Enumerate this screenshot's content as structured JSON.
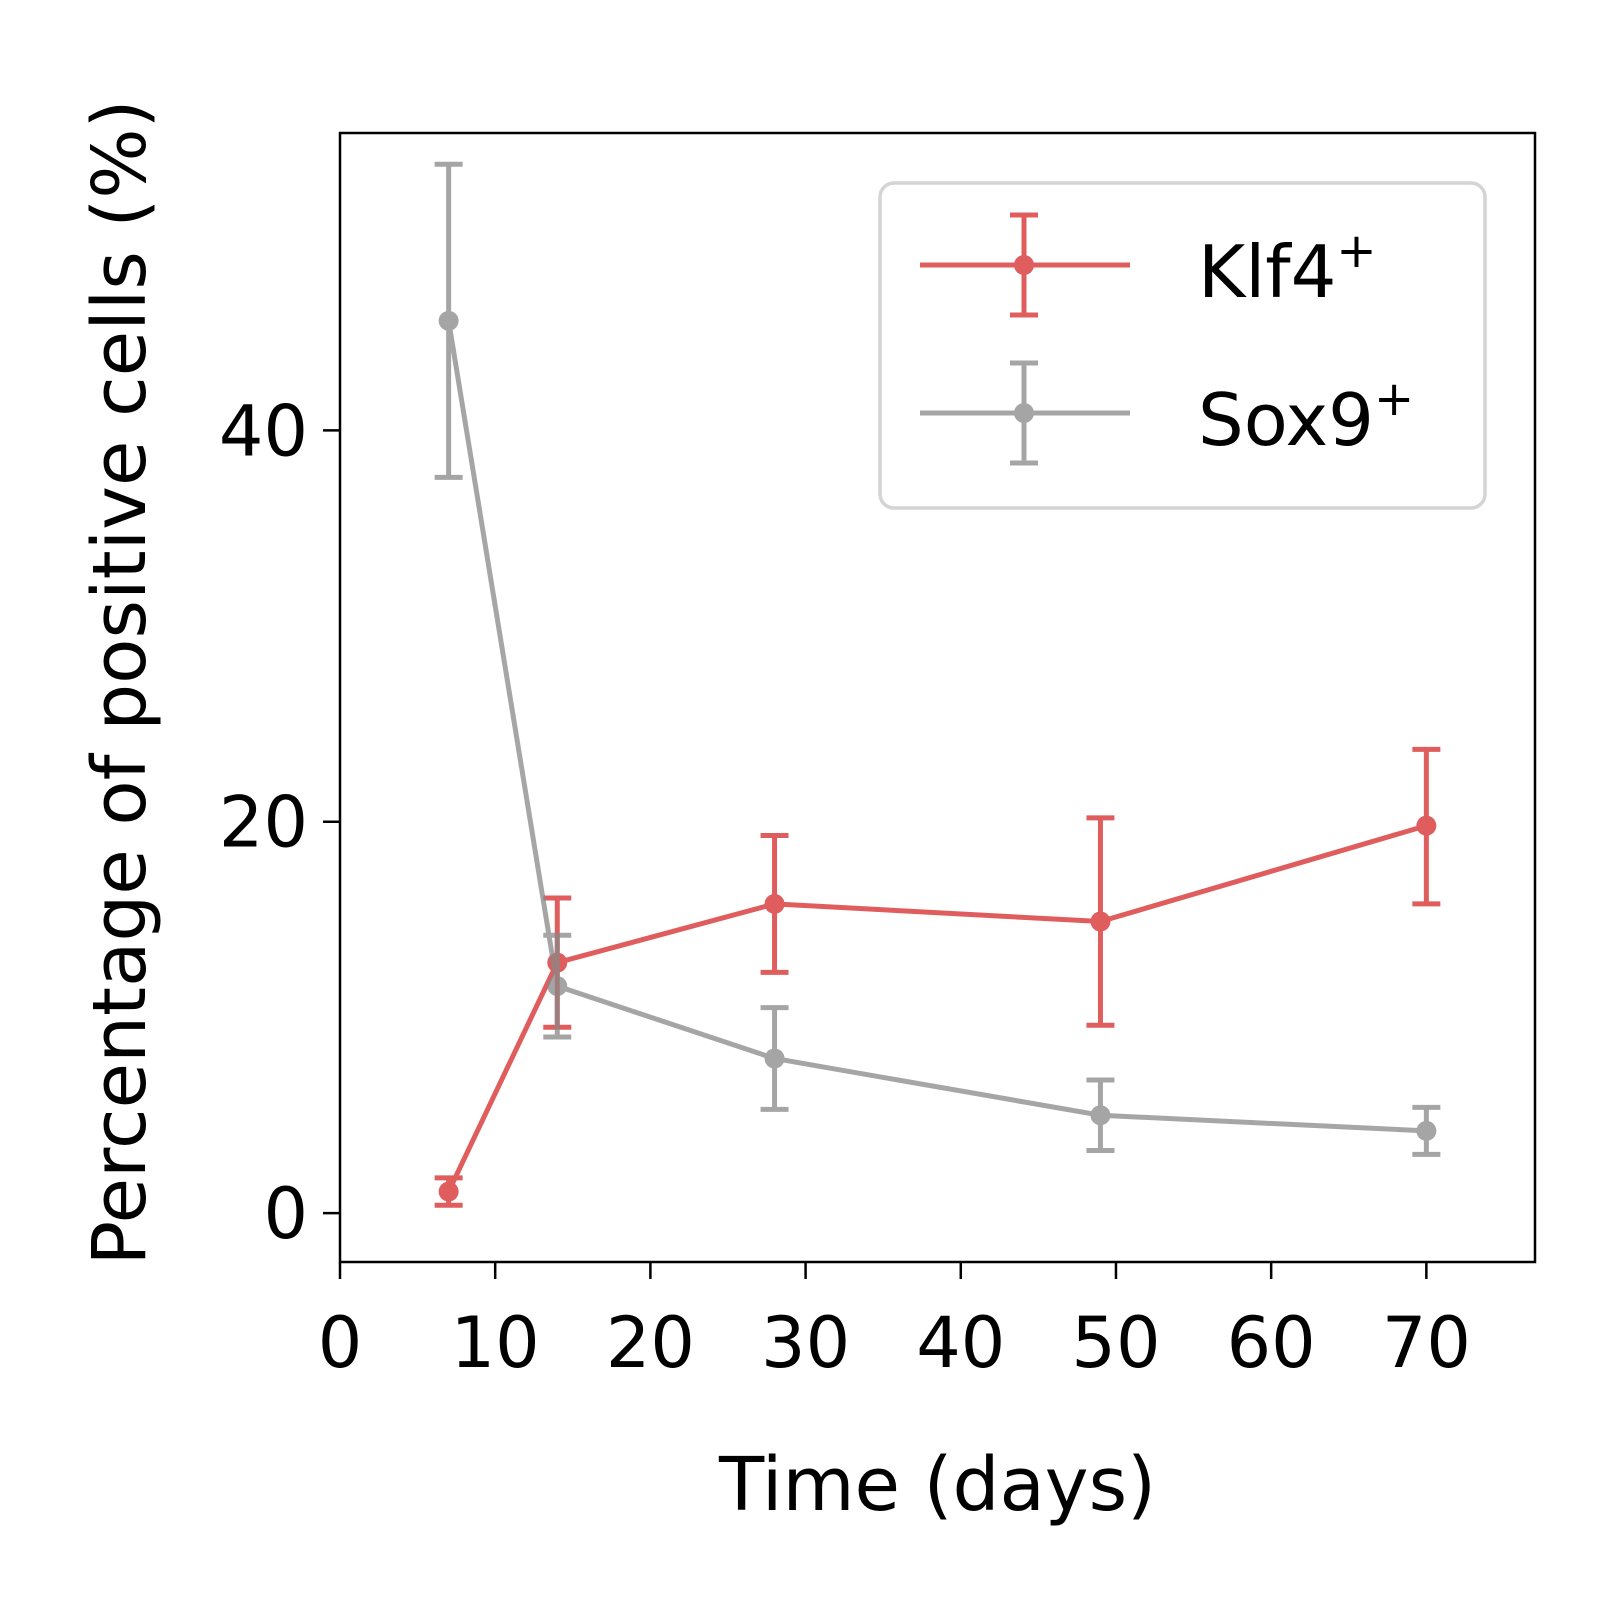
{
  "chart_data": {
    "type": "line",
    "title": "",
    "xlabel": "Time (days)",
    "ylabel": "Percentage of positive cells (%)",
    "xlim": [
      0,
      77
    ],
    "ylim": [
      -2.5,
      55.2
    ],
    "xticks": [
      0,
      10,
      20,
      30,
      40,
      50,
      60,
      70
    ],
    "yticks": [
      0,
      20,
      40
    ],
    "grid": false,
    "legend_position": "top-right",
    "series": [
      {
        "name": "Klf4",
        "name_sup": "+",
        "color": "#d62728",
        "x": [
          7,
          14,
          28,
          49,
          70
        ],
        "y": [
          1.1,
          12.8,
          15.8,
          14.9,
          19.8
        ],
        "err_low": [
          0.7,
          3.3,
          3.5,
          5.3,
          4.0
        ],
        "err_high": [
          0.7,
          3.3,
          3.5,
          5.3,
          3.9
        ]
      },
      {
        "name": "Sox9",
        "name_sup": "+",
        "color": "#888888",
        "x": [
          7,
          14,
          28,
          49,
          70
        ],
        "y": [
          45.6,
          11.6,
          7.9,
          5.0,
          4.2
        ],
        "err_low": [
          8.0,
          2.6,
          2.6,
          1.8,
          1.2
        ],
        "err_high": [
          8.0,
          2.6,
          2.6,
          1.8,
          1.2
        ]
      }
    ]
  }
}
